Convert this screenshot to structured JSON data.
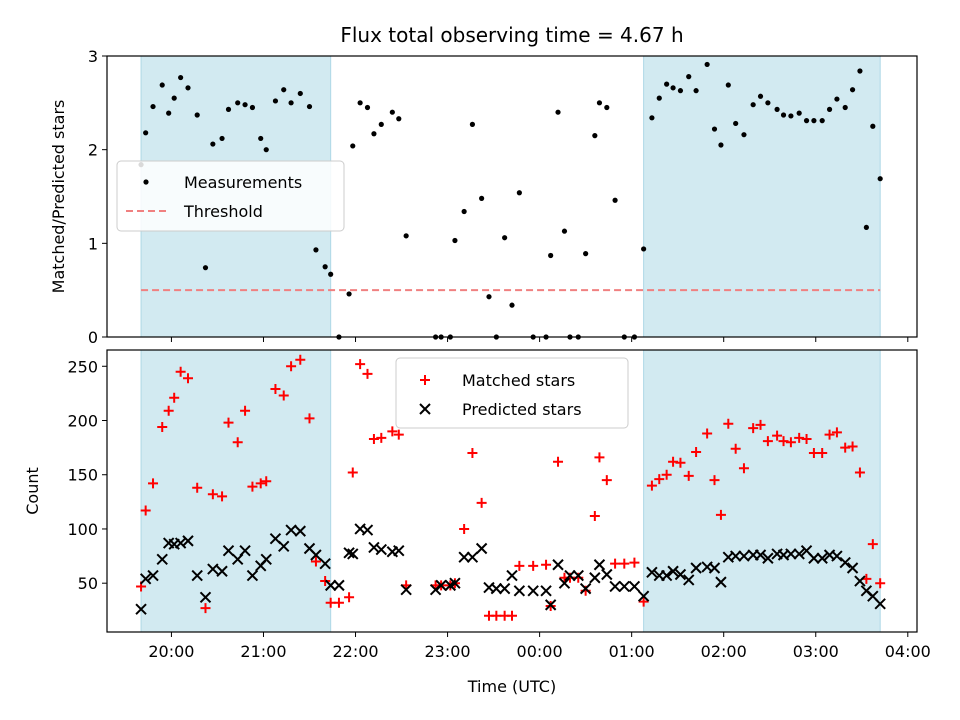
{
  "title": "Flux total observing time = 4.67 h",
  "colors": {
    "shade": "#add8e6",
    "measurement": "#000000",
    "threshold": "#f08080",
    "matched": "#ff0000",
    "predicted": "#000000"
  },
  "chart_data": [
    {
      "type": "scatter",
      "ylabel": "Matched/Predicted stars",
      "xlabel": "",
      "ylim": [
        0,
        3
      ],
      "yticks": [
        0,
        1,
        2,
        3
      ],
      "xlim": [
        19.3,
        28.1
      ],
      "legend_placement": "center-left",
      "shaded_intervals": [
        [
          19.67,
          21.73
        ],
        [
          25.13,
          27.7
        ]
      ],
      "series": [
        {
          "name": "Measurements",
          "marker": "dot",
          "x": [
            19.67,
            19.72,
            19.8,
            19.9,
            19.97,
            20.03,
            20.1,
            20.18,
            20.28,
            20.37,
            20.45,
            20.55,
            20.62,
            20.72,
            20.8,
            20.88,
            20.97,
            21.03,
            21.13,
            21.22,
            21.3,
            21.4,
            21.5,
            21.57,
            21.67,
            21.73,
            21.82,
            21.93,
            21.97,
            22.05,
            22.13,
            22.2,
            22.28,
            22.4,
            22.47,
            22.55,
            22.87,
            22.93,
            23.03,
            23.08,
            23.18,
            23.27,
            23.37,
            23.45,
            23.53,
            23.62,
            23.7,
            23.78,
            23.93,
            24.07,
            24.12,
            24.2,
            24.27,
            24.33,
            24.42,
            24.5,
            24.6,
            24.65,
            24.73,
            24.82,
            24.92,
            25.03,
            25.13,
            25.22,
            25.3,
            25.38,
            25.45,
            25.53,
            25.62,
            25.7,
            25.82,
            25.9,
            25.97,
            26.05,
            26.13,
            26.22,
            26.32,
            26.4,
            26.48,
            26.58,
            26.65,
            26.73,
            26.82,
            26.9,
            26.98,
            27.07,
            27.15,
            27.23,
            27.32,
            27.4,
            27.48,
            27.55,
            27.62,
            27.7
          ],
          "y": [
            1.84,
            2.18,
            2.46,
            2.69,
            2.39,
            2.55,
            2.77,
            2.66,
            2.37,
            0.74,
            2.06,
            2.12,
            2.43,
            2.5,
            2.48,
            2.45,
            2.12,
            2.0,
            2.52,
            2.64,
            2.5,
            2.6,
            2.46,
            0.93,
            0.75,
            0.67,
            0.0,
            0.46,
            2.04,
            2.5,
            2.45,
            2.17,
            2.27,
            2.4,
            2.33,
            1.08,
            0.0,
            0.0,
            0.0,
            1.03,
            1.34,
            2.27,
            1.48,
            0.43,
            0.0,
            1.06,
            0.34,
            1.54,
            0.0,
            0.0,
            0.87,
            2.4,
            1.13,
            0.0,
            0.0,
            0.89,
            2.15,
            2.5,
            2.45,
            1.46,
            0.0,
            0.0,
            0.94,
            2.34,
            2.55,
            2.7,
            2.66,
            2.63,
            2.78,
            2.63,
            2.91,
            2.22,
            2.05,
            2.69,
            2.28,
            2.16,
            2.48,
            2.57,
            2.5,
            2.43,
            2.37,
            2.36,
            2.39,
            2.31,
            2.31,
            2.31,
            2.43,
            2.54,
            2.45,
            2.64,
            2.84,
            1.17,
            2.25,
            1.69
          ]
        },
        {
          "name": "Threshold",
          "marker": "dashed-line",
          "x": [
            19.67,
            27.7
          ],
          "y": [
            0.5,
            0.5
          ]
        }
      ]
    },
    {
      "type": "scatter",
      "ylabel": "Count",
      "xlabel": "Time (UTC)",
      "ylim": [
        5,
        265
      ],
      "yticks": [
        50,
        100,
        150,
        200,
        250
      ],
      "xlim": [
        19.3,
        28.1
      ],
      "xticks": [
        20,
        21,
        22,
        23,
        24,
        25,
        26,
        27,
        28
      ],
      "xtick_labels": [
        "20:00",
        "21:00",
        "22:00",
        "23:00",
        "00:00",
        "01:00",
        "02:00",
        "03:00",
        "04:00"
      ],
      "legend_placement": "upper-center",
      "shaded_intervals": [
        [
          19.67,
          21.73
        ],
        [
          25.13,
          27.7
        ]
      ],
      "series": [
        {
          "name": "Matched stars",
          "marker": "plus",
          "x": [
            19.67,
            19.72,
            19.8,
            19.9,
            19.97,
            20.03,
            20.1,
            20.18,
            20.28,
            20.37,
            20.45,
            20.55,
            20.62,
            20.72,
            20.8,
            20.88,
            20.97,
            21.03,
            21.13,
            21.22,
            21.3,
            21.4,
            21.5,
            21.57,
            21.67,
            21.73,
            21.82,
            21.93,
            21.97,
            22.05,
            22.13,
            22.2,
            22.28,
            22.4,
            22.47,
            22.55,
            22.87,
            22.93,
            23.03,
            23.08,
            23.18,
            23.27,
            23.37,
            23.45,
            23.53,
            23.62,
            23.7,
            23.78,
            23.93,
            24.07,
            24.12,
            24.2,
            24.27,
            24.33,
            24.42,
            24.5,
            24.6,
            24.65,
            24.73,
            24.82,
            24.92,
            25.03,
            25.13,
            25.22,
            25.3,
            25.38,
            25.45,
            25.53,
            25.62,
            25.7,
            25.82,
            25.9,
            25.97,
            26.05,
            26.13,
            26.22,
            26.32,
            26.4,
            26.48,
            26.58,
            26.65,
            26.73,
            26.82,
            26.9,
            26.98,
            27.07,
            27.15,
            27.23,
            27.32,
            27.4,
            27.48,
            27.55,
            27.62,
            27.7
          ],
          "y": [
            47,
            117,
            142,
            194,
            209,
            221,
            245,
            239,
            138,
            27,
            132,
            130,
            198,
            180,
            209,
            139,
            142,
            144,
            229,
            223,
            250,
            256,
            202,
            70,
            52,
            32,
            32,
            37,
            152,
            252,
            243,
            183,
            184,
            190,
            187,
            48,
            48,
            48,
            48,
            50,
            100,
            170,
            124,
            20,
            20,
            20,
            20,
            66,
            66,
            67,
            29,
            162,
            55,
            55,
            55,
            43,
            112,
            166,
            145,
            68,
            68,
            69,
            33,
            140,
            146,
            150,
            162,
            161,
            149,
            171,
            188,
            145,
            113,
            197,
            174,
            156,
            193,
            196,
            181,
            186,
            181,
            180,
            184,
            183,
            170,
            170,
            187,
            189,
            175,
            176,
            152,
            54,
            86,
            50
          ]
        },
        {
          "name": "Predicted stars",
          "marker": "x",
          "x": [
            19.67,
            19.72,
            19.8,
            19.9,
            19.97,
            20.03,
            20.1,
            20.18,
            20.28,
            20.37,
            20.45,
            20.55,
            20.62,
            20.72,
            20.8,
            20.88,
            20.97,
            21.03,
            21.13,
            21.22,
            21.3,
            21.4,
            21.5,
            21.57,
            21.67,
            21.73,
            21.82,
            21.93,
            21.97,
            22.05,
            22.13,
            22.2,
            22.28,
            22.4,
            22.47,
            22.55,
            22.87,
            22.93,
            23.03,
            23.08,
            23.18,
            23.27,
            23.37,
            23.45,
            23.53,
            23.62,
            23.7,
            23.78,
            23.93,
            24.07,
            24.12,
            24.2,
            24.27,
            24.33,
            24.42,
            24.5,
            24.6,
            24.65,
            24.73,
            24.82,
            24.92,
            25.03,
            25.13,
            25.22,
            25.3,
            25.38,
            25.45,
            25.53,
            25.62,
            25.7,
            25.82,
            25.9,
            25.97,
            26.05,
            26.13,
            26.22,
            26.32,
            26.4,
            26.48,
            26.58,
            26.65,
            26.73,
            26.82,
            26.9,
            26.98,
            27.07,
            27.15,
            27.23,
            27.32,
            27.4,
            27.48,
            27.55,
            27.62,
            27.7
          ],
          "y": [
            26,
            54,
            57,
            72,
            87,
            86,
            87,
            89,
            57,
            37,
            63,
            61,
            80,
            72,
            80,
            57,
            66,
            72,
            91,
            84,
            99,
            98,
            82,
            76,
            68,
            48,
            48,
            78,
            77,
            100,
            99,
            83,
            81,
            79,
            80,
            44,
            44,
            48,
            48,
            50,
            74,
            74,
            82,
            46,
            45,
            45,
            57,
            43,
            43,
            43,
            30,
            67,
            50,
            57,
            57,
            45,
            55,
            67,
            58,
            47,
            47,
            47,
            38,
            60,
            57,
            57,
            61,
            58,
            53,
            64,
            65,
            64,
            51,
            74,
            75,
            75,
            76,
            76,
            73,
            77,
            76,
            77,
            77,
            80,
            73,
            73,
            76,
            75,
            69,
            64,
            52,
            43,
            38,
            31
          ]
        }
      ]
    }
  ]
}
